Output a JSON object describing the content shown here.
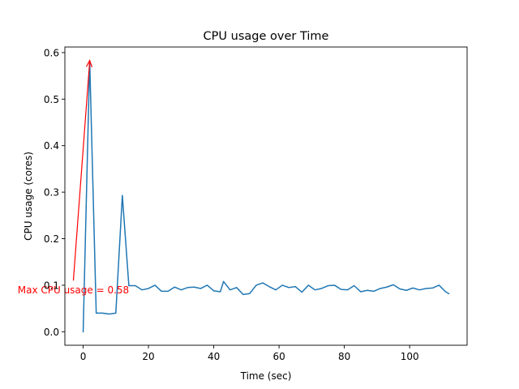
{
  "chart_data": {
    "type": "line",
    "title": "CPU usage over Time",
    "xlabel": "Time (sec)",
    "ylabel": "CPU usage (cores)",
    "xlim": [
      -5.6,
      117.6
    ],
    "ylim": [
      -0.029,
      0.612
    ],
    "xticks": [
      0,
      20,
      40,
      60,
      80,
      100
    ],
    "xtick_labels": [
      "0",
      "20",
      "40",
      "60",
      "80",
      "100"
    ],
    "yticks": [
      0.0,
      0.1,
      0.2,
      0.3,
      0.4,
      0.5,
      0.6
    ],
    "ytick_labels": [
      "0.0",
      "0.1",
      "0.2",
      "0.3",
      "0.4",
      "0.5",
      "0.6"
    ],
    "grid": false,
    "series": [
      {
        "name": "CPU usage",
        "color": "#1f77b4",
        "x": [
          0,
          2,
          4,
          6,
          8,
          10,
          12,
          14,
          16,
          18,
          20,
          22,
          24,
          26,
          28,
          30,
          32,
          34,
          36,
          38,
          40,
          42,
          43,
          45,
          47,
          49,
          51,
          53,
          55,
          57,
          59,
          61,
          63,
          65,
          67,
          69,
          71,
          73,
          75,
          77,
          79,
          81,
          83,
          85,
          87,
          89,
          91,
          93,
          95,
          97,
          99,
          101,
          103,
          105,
          107,
          109,
          111,
          112
        ],
        "values": [
          0.0,
          0.583,
          0.04,
          0.04,
          0.038,
          0.04,
          0.293,
          0.099,
          0.099,
          0.09,
          0.093,
          0.1,
          0.087,
          0.087,
          0.096,
          0.09,
          0.095,
          0.096,
          0.093,
          0.1,
          0.088,
          0.086,
          0.108,
          0.09,
          0.095,
          0.08,
          0.082,
          0.1,
          0.105,
          0.097,
          0.09,
          0.1,
          0.095,
          0.097,
          0.085,
          0.1,
          0.09,
          0.093,
          0.099,
          0.1,
          0.091,
          0.09,
          0.099,
          0.086,
          0.089,
          0.087,
          0.093,
          0.096,
          0.101,
          0.092,
          0.089,
          0.094,
          0.09,
          0.093,
          0.094,
          0.1,
          0.086,
          0.082
        ]
      }
    ],
    "annotation": {
      "text": "Max CPU usage = 0.58",
      "color": "#ff0000",
      "point": [
        2,
        0.583
      ],
      "text_anchor_data": [
        -3,
        0.11
      ]
    }
  }
}
